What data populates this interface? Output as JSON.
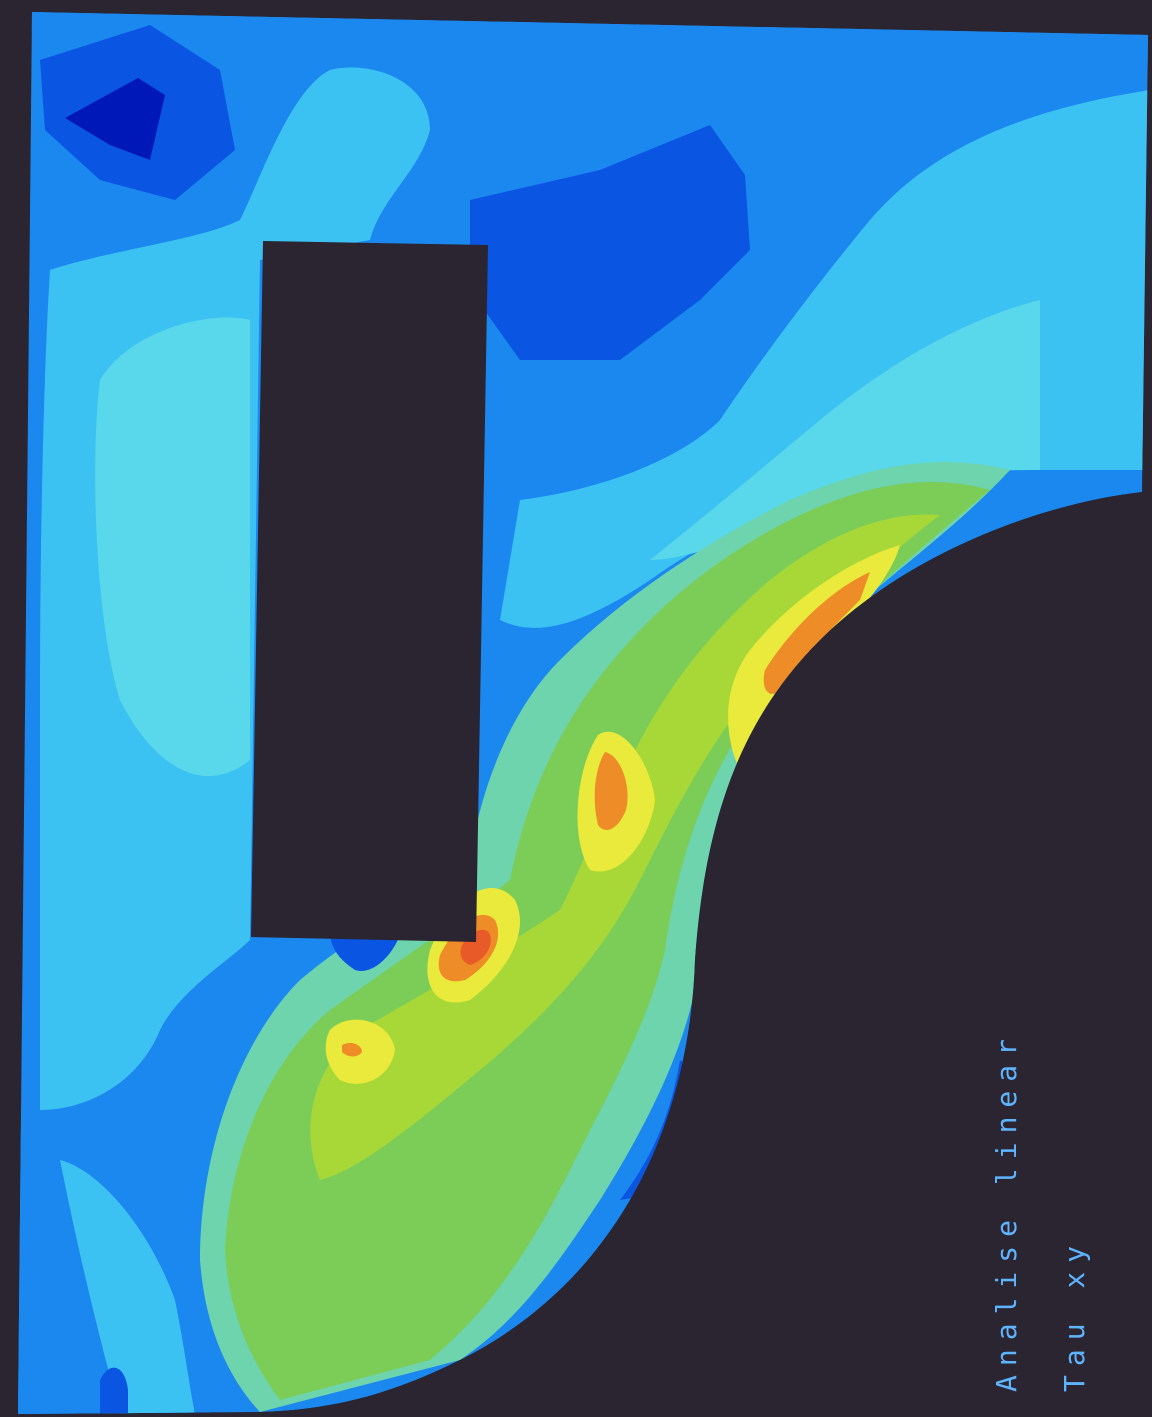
{
  "plot": {
    "caption_line_1": "Analise linear",
    "caption_line_2": "Tau xy"
  },
  "colors": {
    "background": "#2a2530",
    "level_0": "#0018b8",
    "level_1": "#0a55e2",
    "level_2": "#1b88f0",
    "level_3": "#3cc2f2",
    "level_4": "#58d8ea",
    "level_5": "#6ed4ae",
    "level_6": "#7ccc58",
    "level_7": "#a8d838",
    "level_8": "#eaea3c",
    "level_9": "#ee8c28",
    "level_10": "#e85a28",
    "text": "#5fb4ff"
  }
}
